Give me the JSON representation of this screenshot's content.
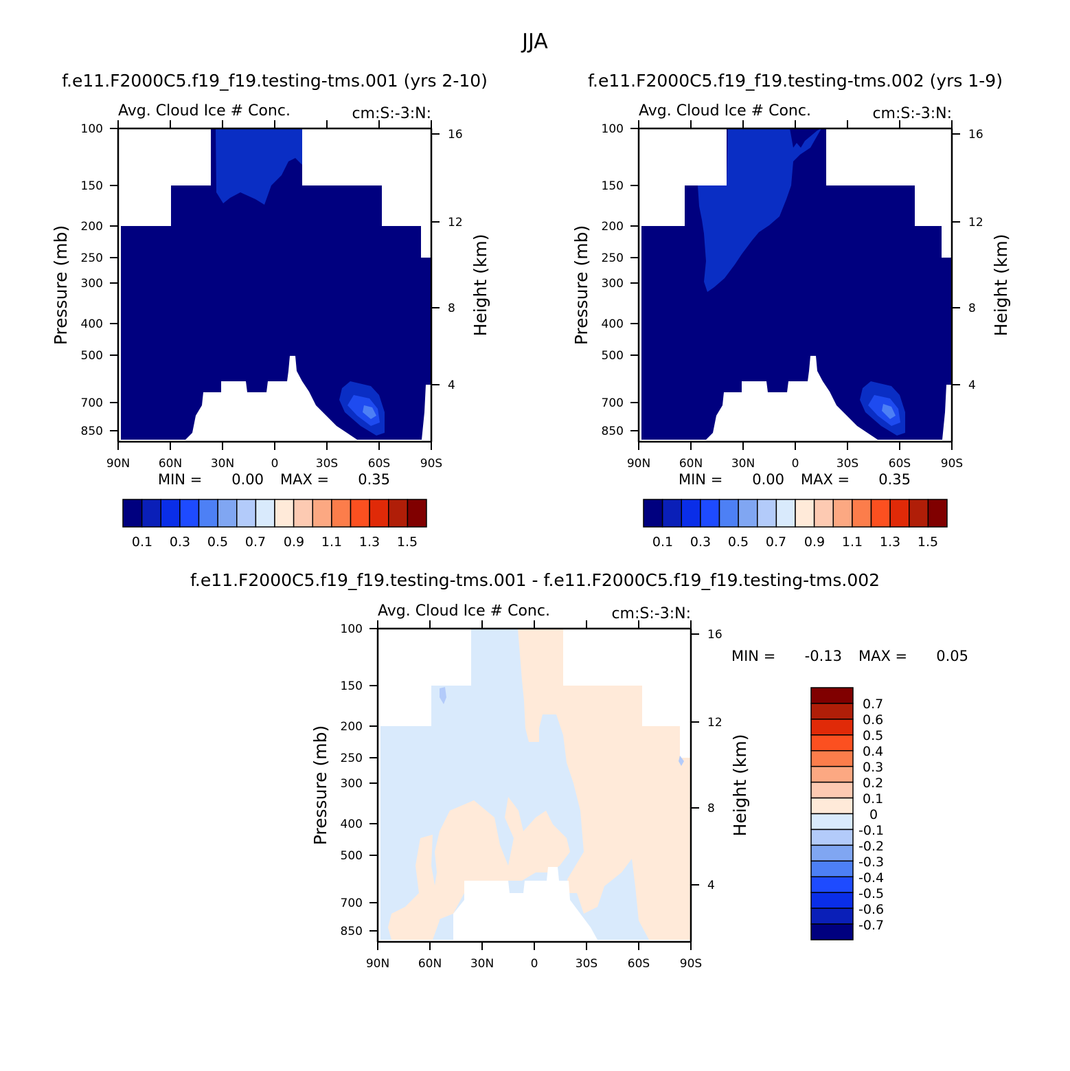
{
  "title": "JJA",
  "colors": {
    "darkblue": "#00007f",
    "blue2": "#0a2ec4",
    "blue3": "#1e4bf0",
    "blue4": "#4d80f5",
    "background": "#ffffff"
  },
  "chart_data": [
    {
      "type": "heatmap",
      "id": "top-left",
      "case_title": "f.e11.F2000C5.f19_f19.testing-tms.001 (yrs 2-10)",
      "var_title": "Avg. Cloud Ice # Conc.",
      "units": "cm:S:-3:N:",
      "ylabel": "Pressure (mb)",
      "y2label": "Height (km)",
      "x_ticks": [
        "90N",
        "60N",
        "30N",
        "0",
        "30S",
        "60S",
        "90S"
      ],
      "y_ticks": [
        "100",
        "150",
        "200",
        "250",
        "300",
        "400",
        "500",
        "700",
        "850"
      ],
      "y2_ticks": [
        "16",
        "12",
        "8",
        "4"
      ],
      "min_label": "MIN =",
      "min_value": "0.00",
      "max_label": "MAX =",
      "max_value": "0.35",
      "colorbar": {
        "orientation": "horizontal",
        "labels": [
          "0.1",
          "0.3",
          "0.5",
          "0.7",
          "0.9",
          "1.1",
          "1.3",
          "1.5"
        ],
        "colors": [
          "#00007f",
          "#0a1fb8",
          "#0a2ee8",
          "#1e4bff",
          "#4d80f5",
          "#80a6f2",
          "#b3cbfa",
          "#d9eafc",
          "#ffead9",
          "#fdcab2",
          "#fca882",
          "#fc7d4b",
          "#fc5020",
          "#e02a08",
          "#b01e08",
          "#800000"
        ]
      }
    },
    {
      "type": "heatmap",
      "id": "top-right",
      "case_title": "f.e11.F2000C5.f19_f19.testing-tms.002 (yrs 1-9)",
      "var_title": "Avg. Cloud Ice # Conc.",
      "units": "cm:S:-3:N:",
      "ylabel": "Pressure (mb)",
      "y2label": "Height (km)",
      "x_ticks": [
        "90N",
        "60N",
        "30N",
        "0",
        "30S",
        "60S",
        "90S"
      ],
      "y_ticks": [
        "100",
        "150",
        "200",
        "250",
        "300",
        "400",
        "500",
        "700",
        "850"
      ],
      "y2_ticks": [
        "16",
        "12",
        "8",
        "4"
      ],
      "min_label": "MIN =",
      "min_value": "0.00",
      "max_label": "MAX =",
      "max_value": "0.35",
      "colorbar": {
        "orientation": "horizontal",
        "labels": [
          "0.1",
          "0.3",
          "0.5",
          "0.7",
          "0.9",
          "1.1",
          "1.3",
          "1.5"
        ],
        "colors": [
          "#00007f",
          "#0a1fb8",
          "#0a2ee8",
          "#1e4bff",
          "#4d80f5",
          "#80a6f2",
          "#b3cbfa",
          "#d9eafc",
          "#ffead9",
          "#fdcab2",
          "#fca882",
          "#fc7d4b",
          "#fc5020",
          "#e02a08",
          "#b01e08",
          "#800000"
        ]
      }
    },
    {
      "type": "heatmap",
      "id": "bottom-diff",
      "case_title": "f.e11.F2000C5.f19_f19.testing-tms.001 - f.e11.F2000C5.f19_f19.testing-tms.002",
      "var_title": "Avg. Cloud Ice # Conc.",
      "units": "cm:S:-3:N:",
      "ylabel": "Pressure (mb)",
      "y2label": "Height (km)",
      "x_ticks": [
        "90N",
        "60N",
        "30N",
        "0",
        "30S",
        "60S",
        "90S"
      ],
      "y_ticks": [
        "100",
        "150",
        "200",
        "250",
        "300",
        "400",
        "500",
        "700",
        "850"
      ],
      "y2_ticks": [
        "16",
        "12",
        "8",
        "4"
      ],
      "min_label": "MIN =",
      "min_value": "-0.13",
      "max_label": "MAX =",
      "max_value": "0.05",
      "colorbar": {
        "orientation": "vertical",
        "labels": [
          "0.7",
          "0.6",
          "0.5",
          "0.4",
          "0.3",
          "0.2",
          "0.1",
          "0",
          "-0.1",
          "-0.2",
          "-0.3",
          "-0.4",
          "-0.5",
          "-0.6",
          "-0.7"
        ],
        "colors": [
          "#800000",
          "#b01e08",
          "#e02a08",
          "#fc5020",
          "#fc7d4b",
          "#fca882",
          "#fdcab2",
          "#ffead9",
          "#d9eafc",
          "#b3cbfa",
          "#80a6f2",
          "#4d80f5",
          "#1e4bff",
          "#0a2ee8",
          "#0a1fb8",
          "#00007f"
        ]
      }
    }
  ]
}
